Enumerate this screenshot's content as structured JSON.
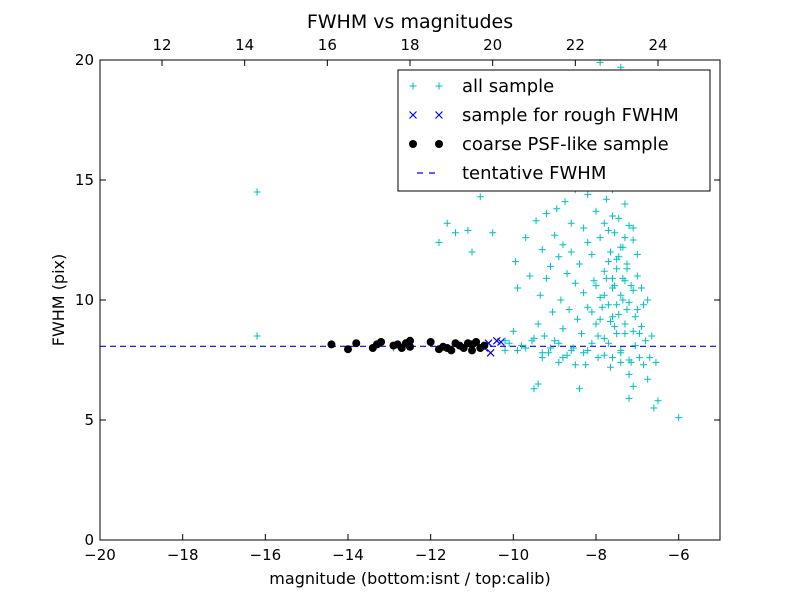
{
  "chart_data": {
    "type": "scatter",
    "title": "FWHM vs magnitudes",
    "xlabel": "magnitude (bottom:isnt / top:calib)",
    "ylabel": "FWHM (pix)",
    "xlim": [
      -20,
      -5
    ],
    "ylim": [
      0,
      20
    ],
    "x_ticks": [
      -20,
      -18,
      -16,
      -14,
      -12,
      -10,
      -8,
      -6
    ],
    "x_tick_labels": [
      "−20",
      "−18",
      "−16",
      "−14",
      "−12",
      "−10",
      "−8",
      "−6"
    ],
    "y_ticks": [
      0,
      5,
      10,
      15,
      20
    ],
    "y_tick_labels": [
      "0",
      "5",
      "10",
      "15",
      "20"
    ],
    "top_axis": {
      "offset": 30.5,
      "ticks": [
        12,
        14,
        16,
        18,
        20,
        22,
        24
      ],
      "tick_labels": [
        "12",
        "14",
        "16",
        "18",
        "20",
        "22",
        "24"
      ]
    },
    "grid": false,
    "legend_position": "top-right",
    "colors": {
      "all_sample": "#00bfbf",
      "rough": "#0000ff",
      "psf": "#000000",
      "tentative": "#0000ff"
    },
    "series": [
      {
        "name": "all sample",
        "marker": "plus",
        "points": [
          [
            -16.2,
            14.5
          ],
          [
            -16.2,
            8.5
          ],
          [
            -12.9,
            8.0
          ],
          [
            -11.8,
            12.4
          ],
          [
            -11.6,
            13.2
          ],
          [
            -11.4,
            12.8
          ],
          [
            -11.1,
            12.9
          ],
          [
            -11.0,
            12.0
          ],
          [
            -10.8,
            14.3
          ],
          [
            -10.6,
            15.3
          ],
          [
            -10.5,
            12.8
          ],
          [
            -10.2,
            7.9
          ],
          [
            -10.1,
            8.2
          ],
          [
            -10.0,
            8.7
          ],
          [
            -9.95,
            11.6
          ],
          [
            -9.9,
            10.5
          ],
          [
            -9.8,
            8.1
          ],
          [
            -9.7,
            12.6
          ],
          [
            -9.6,
            11.0
          ],
          [
            -9.55,
            8.3
          ],
          [
            -9.5,
            6.3
          ],
          [
            -9.45,
            13.3
          ],
          [
            -9.4,
            6.5
          ],
          [
            -9.4,
            9.0
          ],
          [
            -9.35,
            10.2
          ],
          [
            -9.3,
            7.6
          ],
          [
            -9.3,
            12.1
          ],
          [
            -9.25,
            8.5
          ],
          [
            -9.2,
            13.6
          ],
          [
            -9.2,
            10.9
          ],
          [
            -9.15,
            7.8
          ],
          [
            -9.1,
            11.4
          ],
          [
            -9.05,
            9.5
          ],
          [
            -9.0,
            12.7
          ],
          [
            -9.0,
            8.3
          ],
          [
            -8.95,
            13.8
          ],
          [
            -8.9,
            11.8
          ],
          [
            -8.9,
            7.4
          ],
          [
            -8.85,
            10.0
          ],
          [
            -8.8,
            12.3
          ],
          [
            -8.8,
            8.8
          ],
          [
            -8.75,
            14.1
          ],
          [
            -8.7,
            11.1
          ],
          [
            -8.7,
            7.7
          ],
          [
            -8.65,
            9.6
          ],
          [
            -8.6,
            13.2
          ],
          [
            -8.6,
            12.0
          ],
          [
            -8.55,
            8.0
          ],
          [
            -8.5,
            10.7
          ],
          [
            -8.5,
            14.6
          ],
          [
            -8.45,
            9.2
          ],
          [
            -8.4,
            6.3
          ],
          [
            -8.4,
            11.5
          ],
          [
            -8.35,
            8.6
          ],
          [
            -8.3,
            13.0
          ],
          [
            -8.3,
            10.3
          ],
          [
            -8.25,
            7.3
          ],
          [
            -8.2,
            12.4
          ],
          [
            -8.2,
            9.7
          ],
          [
            -8.15,
            15.2
          ],
          [
            -8.1,
            11.9
          ],
          [
            -8.1,
            8.2
          ],
          [
            -8.05,
            10.8
          ],
          [
            -8.0,
            13.7
          ],
          [
            -8.0,
            9.0
          ],
          [
            -7.95,
            7.6
          ],
          [
            -7.9,
            12.6
          ],
          [
            -7.9,
            10.1
          ],
          [
            -7.85,
            16.0
          ],
          [
            -7.8,
            11.2
          ],
          [
            -7.8,
            8.4
          ],
          [
            -7.75,
            14.2
          ],
          [
            -7.7,
            9.8
          ],
          [
            -7.7,
            12.9
          ],
          [
            -7.65,
            7.2
          ],
          [
            -7.6,
            10.5
          ],
          [
            -7.6,
            13.5
          ],
          [
            -7.55,
            8.9
          ],
          [
            -7.5,
            11.7
          ],
          [
            -7.5,
            15.4
          ],
          [
            -7.45,
            9.4
          ],
          [
            -7.4,
            12.2
          ],
          [
            -7.4,
            7.8
          ],
          [
            -7.35,
            10.9
          ],
          [
            -7.3,
            14.0
          ],
          [
            -7.3,
            8.6
          ],
          [
            -7.25,
            11.3
          ],
          [
            -7.2,
            9.9
          ],
          [
            -7.2,
            13.1
          ],
          [
            -7.15,
            7.4
          ],
          [
            -7.1,
            10.4
          ],
          [
            -7.1,
            12.5
          ],
          [
            -7.05,
            8.1
          ],
          [
            -7.0,
            9.6
          ],
          [
            -7.0,
            11.0
          ],
          [
            -6.95,
            7.6
          ],
          [
            -6.9,
            8.9
          ],
          [
            -6.85,
            7.3
          ],
          [
            -6.8,
            8.3
          ],
          [
            -6.75,
            6.7
          ],
          [
            -6.7,
            7.6
          ],
          [
            -6.6,
            5.5
          ],
          [
            -6.5,
            5.8
          ],
          [
            -6.0,
            5.1
          ],
          [
            -7.2,
            5.9
          ],
          [
            -7.4,
            19.7
          ],
          [
            -7.9,
            19.9
          ],
          [
            -8.0,
            17.3
          ],
          [
            -7.6,
            17.0
          ],
          [
            -8.4,
            17.7
          ],
          [
            -7.3,
            16.7
          ],
          [
            -7.7,
            16.4
          ],
          [
            -8.3,
            16.2
          ],
          [
            -7.5,
            17.4
          ],
          [
            -8.7,
            16.5
          ],
          [
            -7.2,
            16.3
          ],
          [
            -7.9,
            18.0
          ],
          [
            -8.1,
            16.6
          ],
          [
            -7.4,
            15.0
          ],
          [
            -7.6,
            14.6
          ],
          [
            -8.2,
            14.4
          ],
          [
            -7.8,
            13.2
          ],
          [
            -7.3,
            12.6
          ],
          [
            -7.5,
            11.3
          ],
          [
            -7.4,
            10.2
          ],
          [
            -7.6,
            9.3
          ],
          [
            -7.3,
            9.0
          ],
          [
            -7.5,
            8.6
          ],
          [
            -7.7,
            8.2
          ],
          [
            -7.4,
            7.9
          ],
          [
            -7.2,
            7.5
          ],
          [
            -7.1,
            8.7
          ],
          [
            -7.3,
            10.8
          ],
          [
            -7.45,
            11.8
          ],
          [
            -7.55,
            10.6
          ],
          [
            -7.65,
            9.1
          ],
          [
            -7.25,
            9.6
          ],
          [
            -7.35,
            10.0
          ],
          [
            -7.5,
            9.8
          ],
          [
            -7.6,
            10.9
          ],
          [
            -7.7,
            11.6
          ],
          [
            -7.8,
            10.2
          ],
          [
            -7.9,
            9.2
          ],
          [
            -8.0,
            10.6
          ],
          [
            -8.1,
            9.5
          ],
          [
            -7.8,
            7.7
          ],
          [
            -7.6,
            7.6
          ],
          [
            -7.4,
            7.4
          ],
          [
            -7.2,
            6.9
          ],
          [
            -7.1,
            6.4
          ],
          [
            -8.3,
            7.8
          ],
          [
            -8.6,
            7.9
          ],
          [
            -8.9,
            8.2
          ],
          [
            -9.1,
            8.0
          ],
          [
            -9.3,
            7.8
          ],
          [
            -9.7,
            8.0
          ],
          [
            -9.9,
            7.9
          ],
          [
            -10.2,
            8.3
          ],
          [
            -9.5,
            8.4
          ],
          [
            -8.8,
            7.6
          ],
          [
            -8.5,
            7.3
          ],
          [
            -8.2,
            7.9
          ],
          [
            -7.95,
            8.5
          ],
          [
            -7.85,
            9.7
          ],
          [
            -7.75,
            10.9
          ],
          [
            -7.65,
            12.0
          ],
          [
            -7.55,
            12.8
          ],
          [
            -7.45,
            13.4
          ],
          [
            -7.35,
            12.2
          ],
          [
            -7.25,
            11.5
          ],
          [
            -7.15,
            10.6
          ],
          [
            -7.05,
            9.3
          ],
          [
            -6.95,
            8.6
          ],
          [
            -6.85,
            9.8
          ],
          [
            -6.75,
            10.0
          ],
          [
            -6.65,
            8.5
          ],
          [
            -6.55,
            7.4
          ],
          [
            -6.9,
            10.5
          ],
          [
            -7.0,
            11.9
          ],
          [
            -7.1,
            13.0
          ]
        ]
      },
      {
        "name": "sample for rough FWHM",
        "marker": "x",
        "points": [
          [
            -10.6,
            8.2
          ],
          [
            -10.4,
            8.3
          ],
          [
            -10.55,
            7.8
          ],
          [
            -10.3,
            8.25
          ],
          [
            -10.7,
            8.0
          ]
        ]
      },
      {
        "name": "coarse PSF-like sample",
        "marker": "dot",
        "points": [
          [
            -14.4,
            8.15
          ],
          [
            -14.0,
            7.95
          ],
          [
            -13.8,
            8.2
          ],
          [
            -13.4,
            8.0
          ],
          [
            -13.3,
            8.15
          ],
          [
            -13.2,
            8.25
          ],
          [
            -12.9,
            8.1
          ],
          [
            -12.8,
            8.15
          ],
          [
            -12.7,
            8.0
          ],
          [
            -12.6,
            8.2
          ],
          [
            -12.5,
            8.05
          ],
          [
            -12.5,
            8.3
          ],
          [
            -12.0,
            8.25
          ],
          [
            -11.8,
            7.95
          ],
          [
            -11.7,
            8.05
          ],
          [
            -11.6,
            8.0
          ],
          [
            -11.5,
            7.9
          ],
          [
            -11.4,
            8.2
          ],
          [
            -11.3,
            8.1
          ],
          [
            -11.2,
            8.0
          ],
          [
            -11.0,
            7.9
          ],
          [
            -11.0,
            8.15
          ],
          [
            -10.9,
            8.25
          ],
          [
            -10.8,
            8.0
          ],
          [
            -10.7,
            8.1
          ],
          [
            -11.1,
            8.2
          ]
        ]
      }
    ],
    "hlines": [
      {
        "name": "tentative FWHM",
        "y": 8.07,
        "style": "dashed"
      }
    ],
    "legend": [
      {
        "label": "all sample",
        "marker": "plus",
        "color": "#00bfbf"
      },
      {
        "label": "sample for rough FWHM",
        "marker": "x",
        "color": "#0000ff"
      },
      {
        "label": "coarse PSF-like sample",
        "marker": "dot",
        "color": "#000000"
      },
      {
        "label": "tentative FWHM",
        "marker": "dash",
        "color": "#0000ff"
      }
    ]
  }
}
